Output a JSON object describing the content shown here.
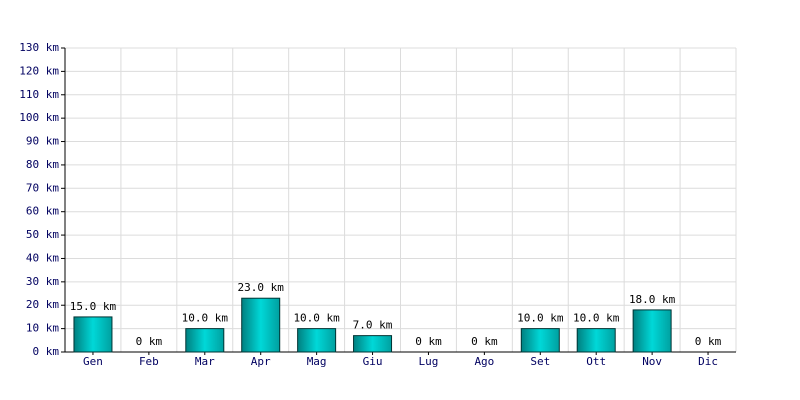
{
  "chart_data": {
    "type": "bar",
    "categories": [
      "Gen",
      "Feb",
      "Mar",
      "Apr",
      "Mag",
      "Giu",
      "Lug",
      "Ago",
      "Set",
      "Ott",
      "Nov",
      "Dic"
    ],
    "values": [
      15,
      0,
      10,
      23,
      10,
      7,
      0,
      0,
      10,
      10,
      18,
      0
    ],
    "value_labels": [
      "15.0 km",
      "0 km",
      "10.0 km",
      "23.0 km",
      "10.0 km",
      "7.0 km",
      "0 km",
      "0 km",
      "10.0 km",
      "10.0 km",
      "18.0 km",
      "0 km"
    ],
    "color": "#00d8d8",
    "ylim": [
      0,
      130
    ],
    "yticks": [
      {
        "value": 0,
        "label": "0 km"
      },
      {
        "value": 10,
        "label": "10 km"
      },
      {
        "value": 20,
        "label": "20 km"
      },
      {
        "value": 30,
        "label": "30 km"
      },
      {
        "value": 40,
        "label": "40 km"
      },
      {
        "value": 50,
        "label": "50 km"
      },
      {
        "value": 60,
        "label": "60 km"
      },
      {
        "value": 70,
        "label": "70 km"
      },
      {
        "value": 80,
        "label": "80 km"
      },
      {
        "value": 90,
        "label": "90 km"
      },
      {
        "value": 100,
        "label": "100 km"
      },
      {
        "value": 110,
        "label": "110 km"
      },
      {
        "value": 120,
        "label": "120 km"
      },
      {
        "value": 130,
        "label": "130 km"
      }
    ],
    "grid": true
  }
}
